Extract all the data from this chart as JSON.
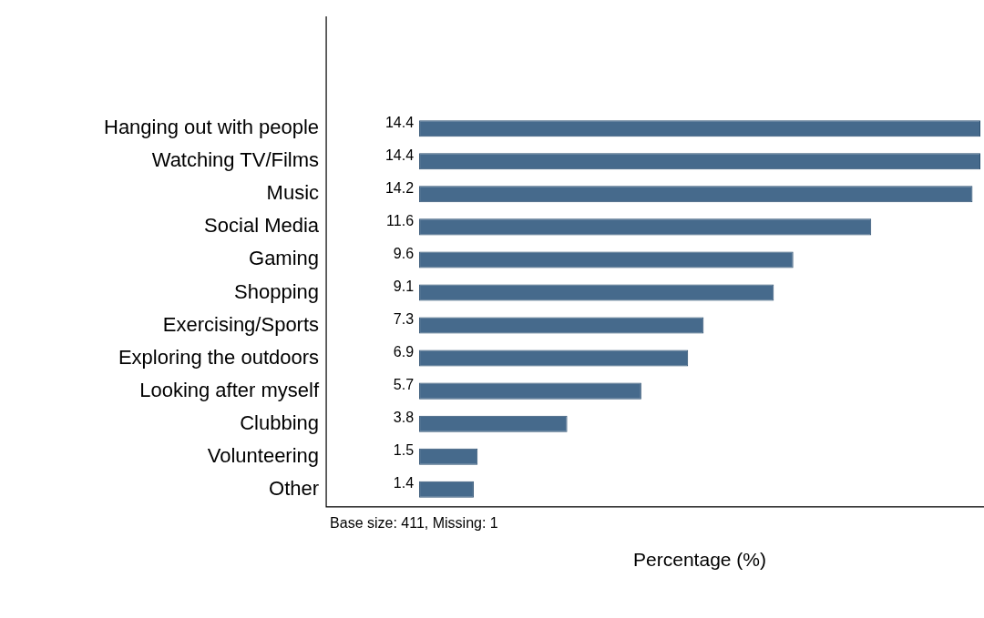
{
  "chart_data": {
    "type": "bar",
    "orientation": "horizontal",
    "xlabel": "Percentage (%)",
    "categories": [
      "Hanging out with people",
      "Watching TV/Films",
      "Music",
      "Social Media",
      "Gaming",
      "Shopping",
      "Exercising/Sports",
      "Exploring the outdoors",
      "Looking after myself",
      "Clubbing",
      "Volunteering",
      "Other"
    ],
    "values": [
      14.4,
      14.4,
      14.2,
      11.6,
      9.6,
      9.1,
      7.3,
      6.9,
      5.7,
      3.8,
      1.5,
      1.4
    ],
    "color": "#466a8c",
    "data_labels": true,
    "grid": false,
    "legend": false,
    "annotations": [
      "Base size: 411, Missing: 1"
    ]
  }
}
